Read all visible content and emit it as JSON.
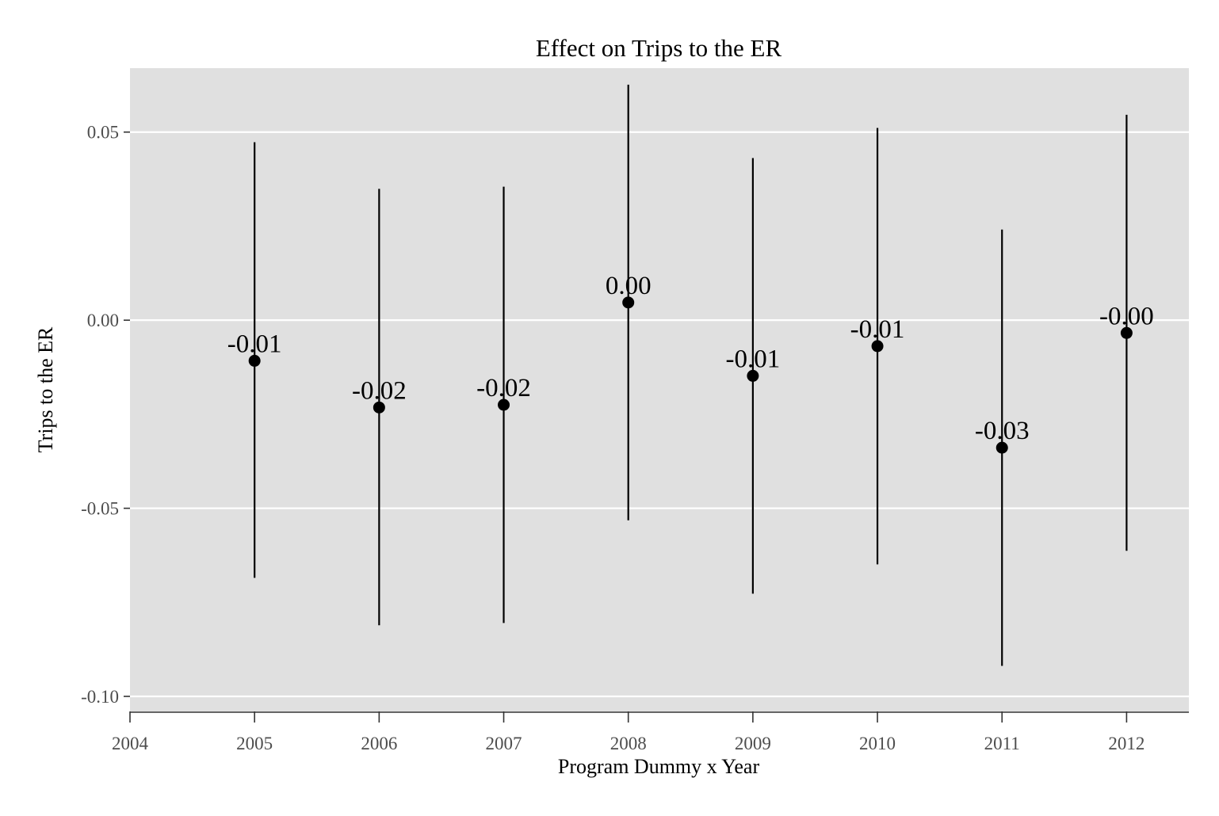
{
  "chart_data": {
    "type": "scatter",
    "title": "Effect on Trips to the ER",
    "xlabel": "Program Dummy x Year",
    "ylabel": "Trips to the ER",
    "xlim": [
      2004,
      2012.5
    ],
    "ylim": [
      -0.104,
      0.067
    ],
    "x_ticks": [
      2004,
      2005,
      2006,
      2007,
      2008,
      2009,
      2010,
      2011,
      2012
    ],
    "y_ticks": [
      -0.1,
      -0.05,
      0.0,
      0.05
    ],
    "y_tick_labels": [
      "-0.10",
      "-0.05",
      "0.00",
      "0.05"
    ],
    "grid": true,
    "error_bars": true,
    "points": [
      {
        "x": 2005,
        "y": -0.0108,
        "lower": -0.0685,
        "upper": 0.0473,
        "label": "-0.01"
      },
      {
        "x": 2006,
        "y": -0.0232,
        "lower": -0.0811,
        "upper": 0.0349,
        "label": "-0.02"
      },
      {
        "x": 2007,
        "y": -0.0225,
        "lower": -0.0805,
        "upper": 0.0355,
        "label": "-0.02"
      },
      {
        "x": 2008,
        "y": 0.0047,
        "lower": -0.0532,
        "upper": 0.0626,
        "label": "0.00"
      },
      {
        "x": 2009,
        "y": -0.0148,
        "lower": -0.0727,
        "upper": 0.0431,
        "label": "-0.01"
      },
      {
        "x": 2010,
        "y": -0.0069,
        "lower": -0.0649,
        "upper": 0.0511,
        "label": "-0.01"
      },
      {
        "x": 2011,
        "y": -0.0339,
        "lower": -0.0919,
        "upper": 0.0241,
        "label": "-0.03"
      },
      {
        "x": 2012,
        "y": -0.0034,
        "lower": -0.0613,
        "upper": 0.0546,
        "label": "-0.00"
      }
    ],
    "colors": {
      "panel_background": "#e0e0e0",
      "grid": "#ffffff",
      "points": "#000000",
      "tick_text": "#4d4d4d"
    }
  }
}
